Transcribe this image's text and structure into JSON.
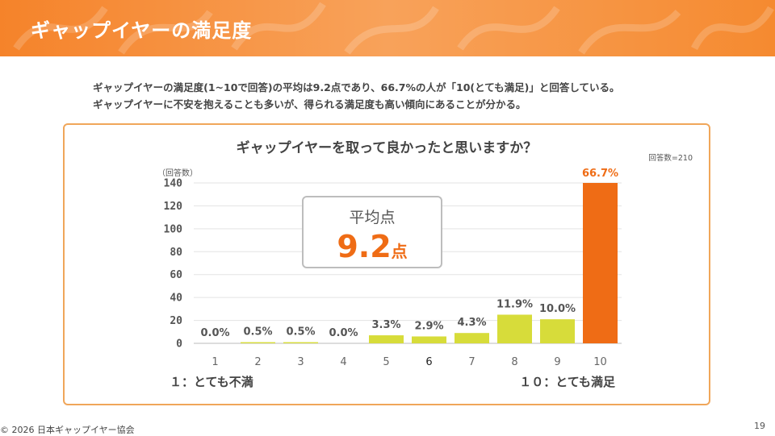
{
  "header": {
    "title": "ギャップイヤーの満足度"
  },
  "summary": {
    "line1": "ギャップイヤーの満足度(1~10で回答)の平均は9.2点であり、66.7%の人が「10(とても満足)」と回答している。",
    "line2": "ギャップイヤーに不安を抱えることも多いが、得られる満足度も高い傾向にあることが分かる。"
  },
  "chart_data": {
    "type": "bar",
    "title": "ギャップイヤーを取って良かったと思いますか？",
    "ylabel": "（回答数）",
    "n_note": "回答数=210",
    "categories": [
      "1",
      "2",
      "3",
      "4",
      "5",
      "6",
      "7",
      "8",
      "9",
      "10"
    ],
    "values": [
      0,
      1,
      1,
      0,
      7,
      6,
      9,
      25,
      21,
      140
    ],
    "percent_labels": [
      "0.0%",
      "0.5%",
      "0.5%",
      "0.0%",
      "3.3%",
      "2.9%",
      "4.3%",
      "11.9%",
      "10.0%",
      "66.7%"
    ],
    "yticks": [
      "0",
      "20",
      "40",
      "60",
      "80",
      "100",
      "120",
      "140"
    ],
    "ylim": [
      0,
      140
    ],
    "highlight_category": "10",
    "grid": true,
    "colors": {
      "bar": "#d7dc3a",
      "highlight": "#ef6c15",
      "label": "#555555",
      "highlight_label": "#ef6c15"
    }
  },
  "average": {
    "label": "平均点",
    "value": "9.2",
    "unit": "点"
  },
  "scale_ends": {
    "low": "１：とても不満",
    "high": "１０：とても満足"
  },
  "footer": {
    "copyright": "© 2026 日本ギャップイヤー協会",
    "page": "19"
  }
}
